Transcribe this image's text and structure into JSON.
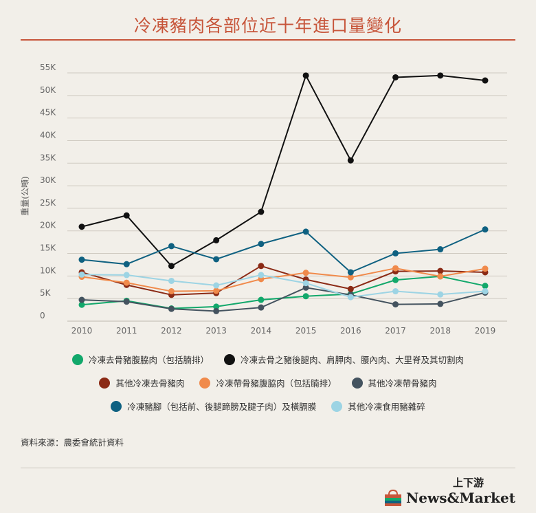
{
  "title": "冷凍豬肉各部位近十年進口量變化",
  "source": "資料來源：農委會統計資料",
  "brand": {
    "top": "上下游",
    "name": "News&Market",
    "logo_icon": "shopping-bag-icon"
  },
  "chart_data": {
    "type": "line",
    "ylabel": "重量(公噸)",
    "x": [
      "2010",
      "2011",
      "2012",
      "2013",
      "2014",
      "2015",
      "2016",
      "2017",
      "2018",
      "2019"
    ],
    "ylim": [
      0,
      55000
    ],
    "yticks": [
      0,
      5000,
      10000,
      15000,
      20000,
      25000,
      30000,
      35000,
      40000,
      45000,
      50000,
      55000
    ],
    "ytick_labels": [
      "0",
      "5K",
      "10K",
      "15K",
      "20K",
      "25K",
      "30K",
      "35K",
      "40K",
      "45K",
      "50K",
      "55K"
    ],
    "grid": true,
    "legend_position": "bottom",
    "series": [
      {
        "name": "冷凍去骨豬腹脇肉（包括腩排）",
        "color": "#12a86b",
        "values": [
          2400,
          3300,
          1600,
          2000,
          3500,
          4300,
          4800,
          7900,
          8700,
          6600
        ]
      },
      {
        "name": "冷凍去骨之豬後腿肉、肩胛肉、腰內肉、大里脊及其切割肉",
        "color": "#111111",
        "values": [
          19700,
          22200,
          11000,
          16700,
          23000,
          53200,
          34400,
          52800,
          53200,
          52100
        ]
      },
      {
        "name": "其他冷凍去骨豬肉",
        "color": "#8b2a15",
        "values": [
          9600,
          6800,
          4600,
          5000,
          11000,
          8000,
          5900,
          9800,
          9900,
          9600
        ]
      },
      {
        "name": "冷凍帶骨豬腹脇肉（包括腩排）",
        "color": "#f08a4b",
        "values": [
          8600,
          7300,
          5400,
          5500,
          8100,
          9500,
          8500,
          10500,
          8700,
          10400
        ]
      },
      {
        "name": "其他冷凍帶骨豬肉",
        "color": "#44535f",
        "values": [
          3500,
          3100,
          1500,
          1000,
          1800,
          6200,
          4600,
          2500,
          2600,
          5100
        ]
      },
      {
        "name": "冷凍豬腳（包括前、後腿蹄膀及腱子肉）及橫膈膜",
        "color": "#0f6181",
        "values": [
          12400,
          11400,
          15400,
          12500,
          15900,
          18600,
          9600,
          13800,
          14700,
          19100
        ]
      },
      {
        "name": "其他冷凍食用豬雜碎",
        "color": "#9dd4e4",
        "values": [
          9100,
          9000,
          7700,
          6700,
          9000,
          7200,
          4100,
          5400,
          4700,
          5400
        ]
      }
    ]
  }
}
